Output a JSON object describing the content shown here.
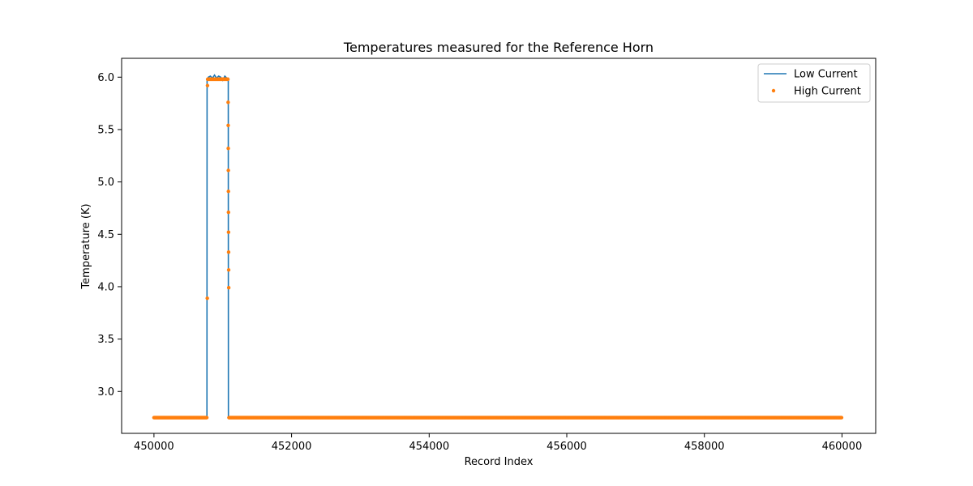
{
  "chart_data": {
    "type": "line",
    "title": "Temperatures measured for the Reference Horn",
    "xlabel": "Record Index",
    "ylabel": "Temperature (K)",
    "xlim": [
      449530,
      460490
    ],
    "ylim": [
      2.6,
      6.18
    ],
    "xticks": [
      450000,
      452000,
      454000,
      456000,
      458000,
      460000
    ],
    "yticks": [
      3.0,
      3.5,
      4.0,
      4.5,
      5.0,
      5.5,
      6.0
    ],
    "xtick_labels": [
      "450000",
      "452000",
      "454000",
      "456000",
      "458000",
      "460000"
    ],
    "ytick_labels": [
      "3.0",
      "3.5",
      "4.0",
      "4.5",
      "5.0",
      "5.5",
      "6.0"
    ],
    "grid": false,
    "legend_position": "top-right",
    "series": [
      {
        "name": "Low Current",
        "kind": "line",
        "color": "#1f77b4",
        "x": [
          450000,
          450770,
          450772,
          450790,
          450820,
          450850,
          450880,
          450910,
          450940,
          450970,
          451000,
          451030,
          451060,
          451080,
          451082,
          460000
        ],
        "y": [
          2.75,
          2.75,
          5.97,
          6.0,
          6.01,
          5.99,
          6.02,
          5.99,
          6.01,
          6.0,
          5.97,
          6.01,
          5.99,
          5.99,
          2.75,
          2.75
        ]
      },
      {
        "name": "High Current",
        "kind": "scatter",
        "color": "#ff7f0e",
        "plateau_low": {
          "x_start": 450000,
          "x_end": 450770,
          "y": 2.75
        },
        "plateau_high": {
          "x_start": 450780,
          "x_end": 451075,
          "y": 5.98
        },
        "plateau_tail": {
          "x_start": 451090,
          "x_end": 460000,
          "y": 2.75
        },
        "extra_points": [
          [
            450775,
            3.89
          ],
          [
            450778,
            5.92
          ],
          [
            451078,
            5.76
          ],
          [
            451079,
            5.54
          ],
          [
            451080,
            5.32
          ],
          [
            451081,
            5.11
          ],
          [
            451082,
            4.91
          ],
          [
            451083,
            4.71
          ],
          [
            451084,
            4.52
          ],
          [
            451085,
            4.33
          ],
          [
            451086,
            4.16
          ],
          [
            451087,
            3.99
          ]
        ]
      }
    ]
  }
}
